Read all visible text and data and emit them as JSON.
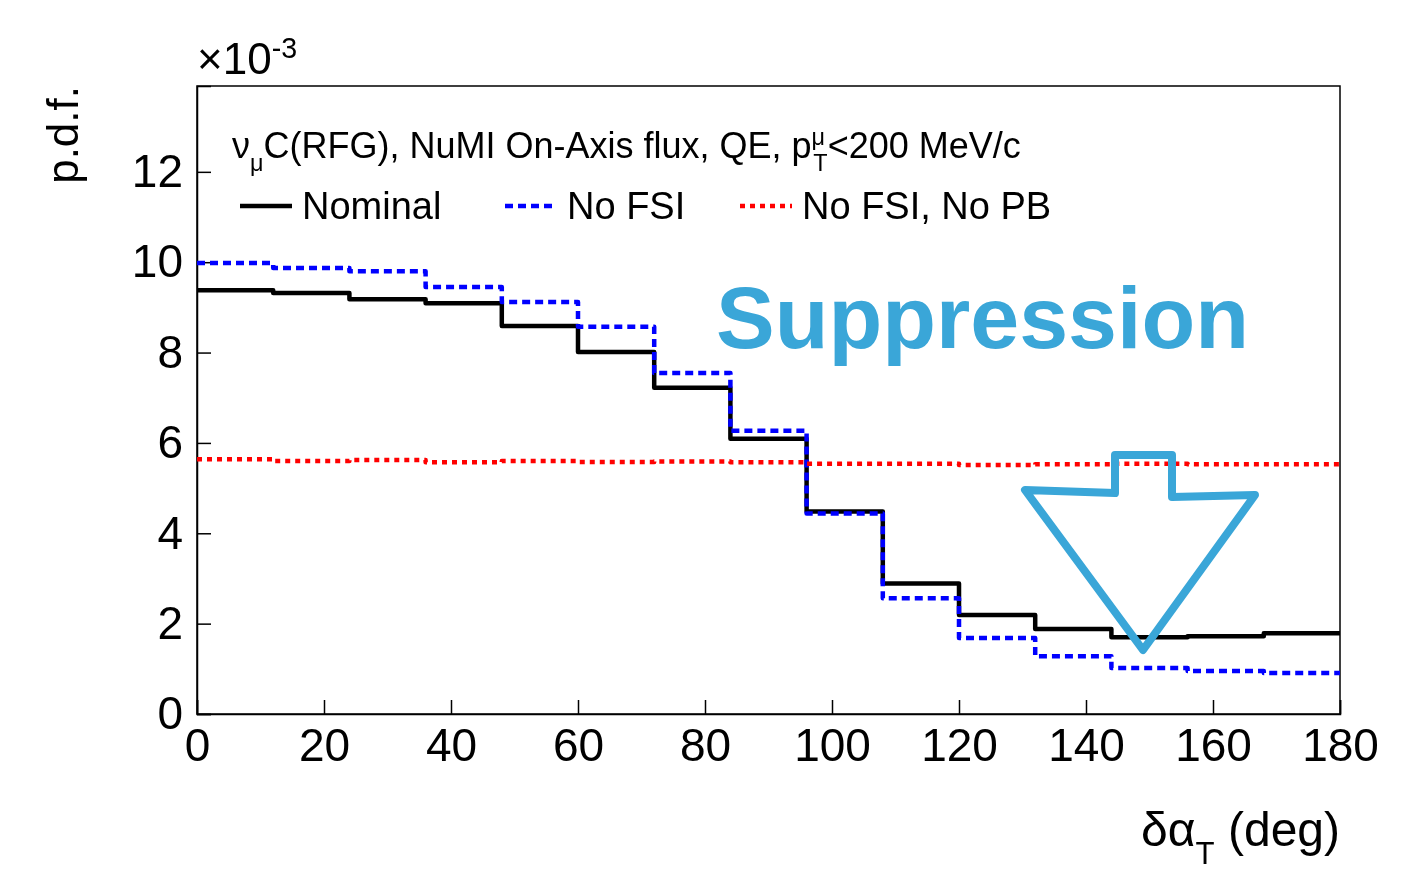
{
  "chart_data": {
    "type": "histogram",
    "title": "ν$_{μ}$C(RFG), NuMI On-Axis flux, QE, p$^{μ}$$_{T}$<200 MeV/c",
    "xlabel": "δα$_{T}$ (deg)",
    "ylabel": "p.d.f.",
    "bins": [
      0,
      12,
      24,
      36,
      48,
      60,
      72,
      84,
      96,
      108,
      120,
      132,
      144,
      156,
      168,
      180
    ],
    "series": [
      {
        "name": "Nominal",
        "color": "#000000",
        "line_style": "solid",
        "values": [
          9.38,
          9.32,
          9.18,
          9.09,
          8.59,
          8.01,
          7.22,
          6.09,
          4.48,
          2.89,
          2.19,
          1.88,
          1.7,
          1.72,
          1.79
        ]
      },
      {
        "name": "No FSI",
        "color": "#0000ff",
        "line_style": "dashed",
        "values": [
          9.98,
          9.87,
          9.8,
          9.45,
          9.12,
          8.57,
          7.55,
          6.27,
          4.44,
          2.56,
          1.68,
          1.28,
          1.02,
          0.95,
          0.91
        ]
      },
      {
        "name": "No FSI, No PB",
        "color": "#ff0000",
        "line_style": "dotted",
        "values": [
          5.64,
          5.6,
          5.62,
          5.57,
          5.6,
          5.58,
          5.59,
          5.57,
          5.54,
          5.54,
          5.51,
          5.53,
          5.54,
          5.53,
          5.53
        ]
      }
    ],
    "xlim": [
      0,
      180
    ],
    "xticks": [
      0,
      20,
      40,
      60,
      80,
      100,
      120,
      140,
      160,
      180
    ],
    "ylim": [
      0,
      13.9
    ],
    "yticks": [
      0,
      2,
      4,
      6,
      8,
      10,
      12
    ],
    "legend": "top",
    "grid": false,
    "annotations": [
      "×10$^{-3}$",
      "Suppression"
    ]
  }
}
